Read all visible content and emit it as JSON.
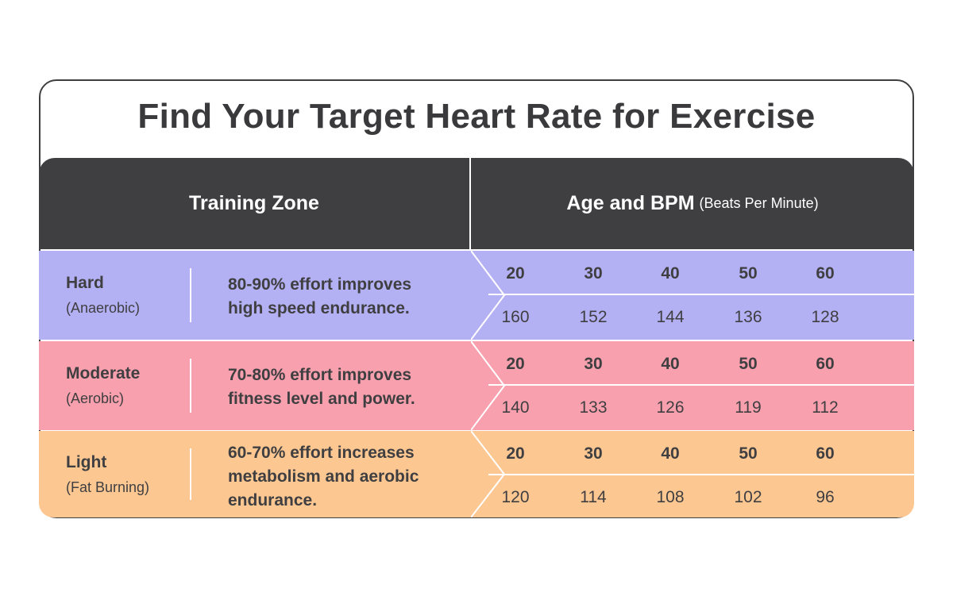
{
  "title": "Find Your Target Heart Rate for Exercise",
  "header": {
    "left": "Training Zone",
    "right_main": "Age and BPM",
    "right_sub": "(Beats Per Minute)"
  },
  "colors": {
    "dark": "#3f3f41",
    "hard": "#b4b0f4",
    "moderate": "#f9a0ae",
    "light": "#fdc792"
  },
  "zones": [
    {
      "name": "Hard",
      "sub": "(Anaerobic)",
      "desc_lines": [
        "80-90% effort improves",
        "high speed endurance."
      ],
      "ages": [
        "20",
        "30",
        "40",
        "50",
        "60"
      ],
      "bpm": [
        "160",
        "152",
        "144",
        "136",
        "128"
      ]
    },
    {
      "name": "Moderate",
      "sub": "(Aerobic)",
      "desc_lines": [
        "70-80% effort improves",
        "fitness level and power."
      ],
      "ages": [
        "20",
        "30",
        "40",
        "50",
        "60"
      ],
      "bpm": [
        "140",
        "133",
        "126",
        "119",
        "112"
      ]
    },
    {
      "name": "Light",
      "sub": "(Fat Burning)",
      "desc_lines": [
        "60-70% effort increases",
        "metabolism and aerobic",
        "endurance."
      ],
      "ages": [
        "20",
        "30",
        "40",
        "50",
        "60"
      ],
      "bpm": [
        "120",
        "114",
        "108",
        "102",
        "96"
      ]
    }
  ]
}
